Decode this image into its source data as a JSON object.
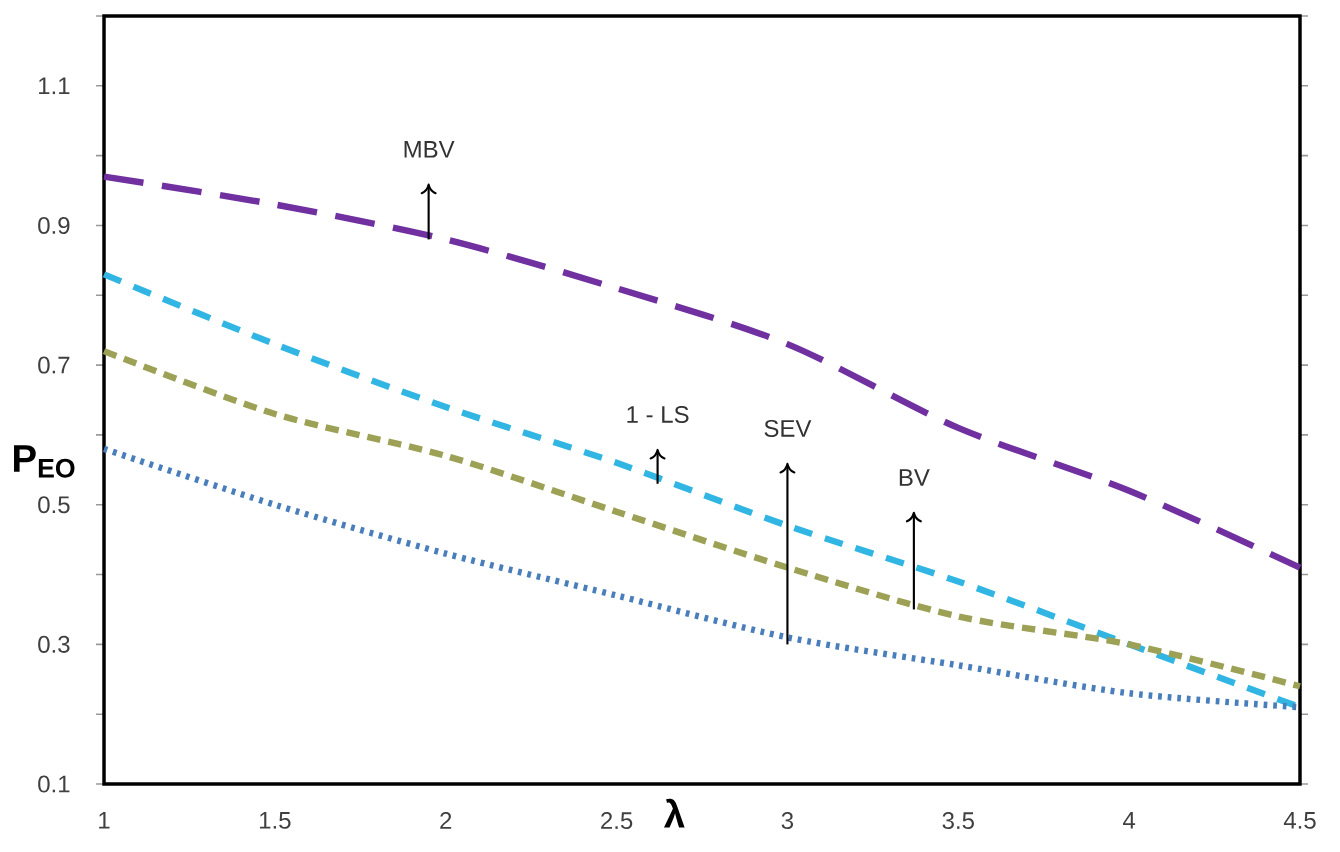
{
  "chart_data": {
    "type": "line",
    "xlabel": "λ",
    "ylabel": "P$_{EO}$",
    "x": [
      1,
      1.5,
      2,
      2.5,
      3,
      3.5,
      4,
      4.5
    ],
    "series": [
      {
        "color": "#7030a0",
        "line_style": "longdashed",
        "values": [
          0.97,
          0.93,
          0.88,
          0.81,
          0.73,
          0.61,
          0.52,
          0.41
        ]
      },
      {
        "color": "#31b5e3",
        "line_style": "dashed",
        "values": [
          0.83,
          0.73,
          0.64,
          0.56,
          0.47,
          0.39,
          0.3,
          0.21
        ]
      },
      {
        "color": "#9ca155",
        "line_style": "shortdashed",
        "values": [
          0.72,
          0.63,
          0.57,
          0.49,
          0.41,
          0.34,
          0.3,
          0.24
        ]
      },
      {
        "color": "#4a7ebb",
        "line_style": "dotted",
        "values": [
          0.58,
          0.5,
          0.43,
          0.37,
          0.31,
          0.27,
          0.23,
          0.21
        ]
      }
    ],
    "annotations": [
      {
        "text": "MBV",
        "x": 1.95,
        "y": 0.88
      },
      {
        "text": "1 - LS",
        "x": 2.62,
        "y": 0.53
      },
      {
        "text": "SEV",
        "x": 3.0,
        "y": 0.3
      },
      {
        "text": "BV",
        "x": 3.37,
        "y": 0.35
      }
    ],
    "xlim": [
      1,
      4.5
    ],
    "ylim": [
      0.1,
      1.2
    ],
    "xticks": [
      1,
      1.5,
      2,
      2.5,
      3,
      3.5,
      4,
      4.5
    ],
    "yticks": [
      0.1,
      {
        "value": 0.2,
        "label": null
      },
      0.3,
      {
        "value": 0.4,
        "label": null
      },
      0.5,
      {
        "value": 0.6,
        "label": null
      },
      0.7,
      {
        "value": 0.8,
        "label": null
      },
      0.9,
      {
        "value": 1.0,
        "label": null
      },
      1.1,
      {
        "value": 1.2,
        "label": null
      }
    ],
    "grid": false,
    "marker": "none"
  }
}
